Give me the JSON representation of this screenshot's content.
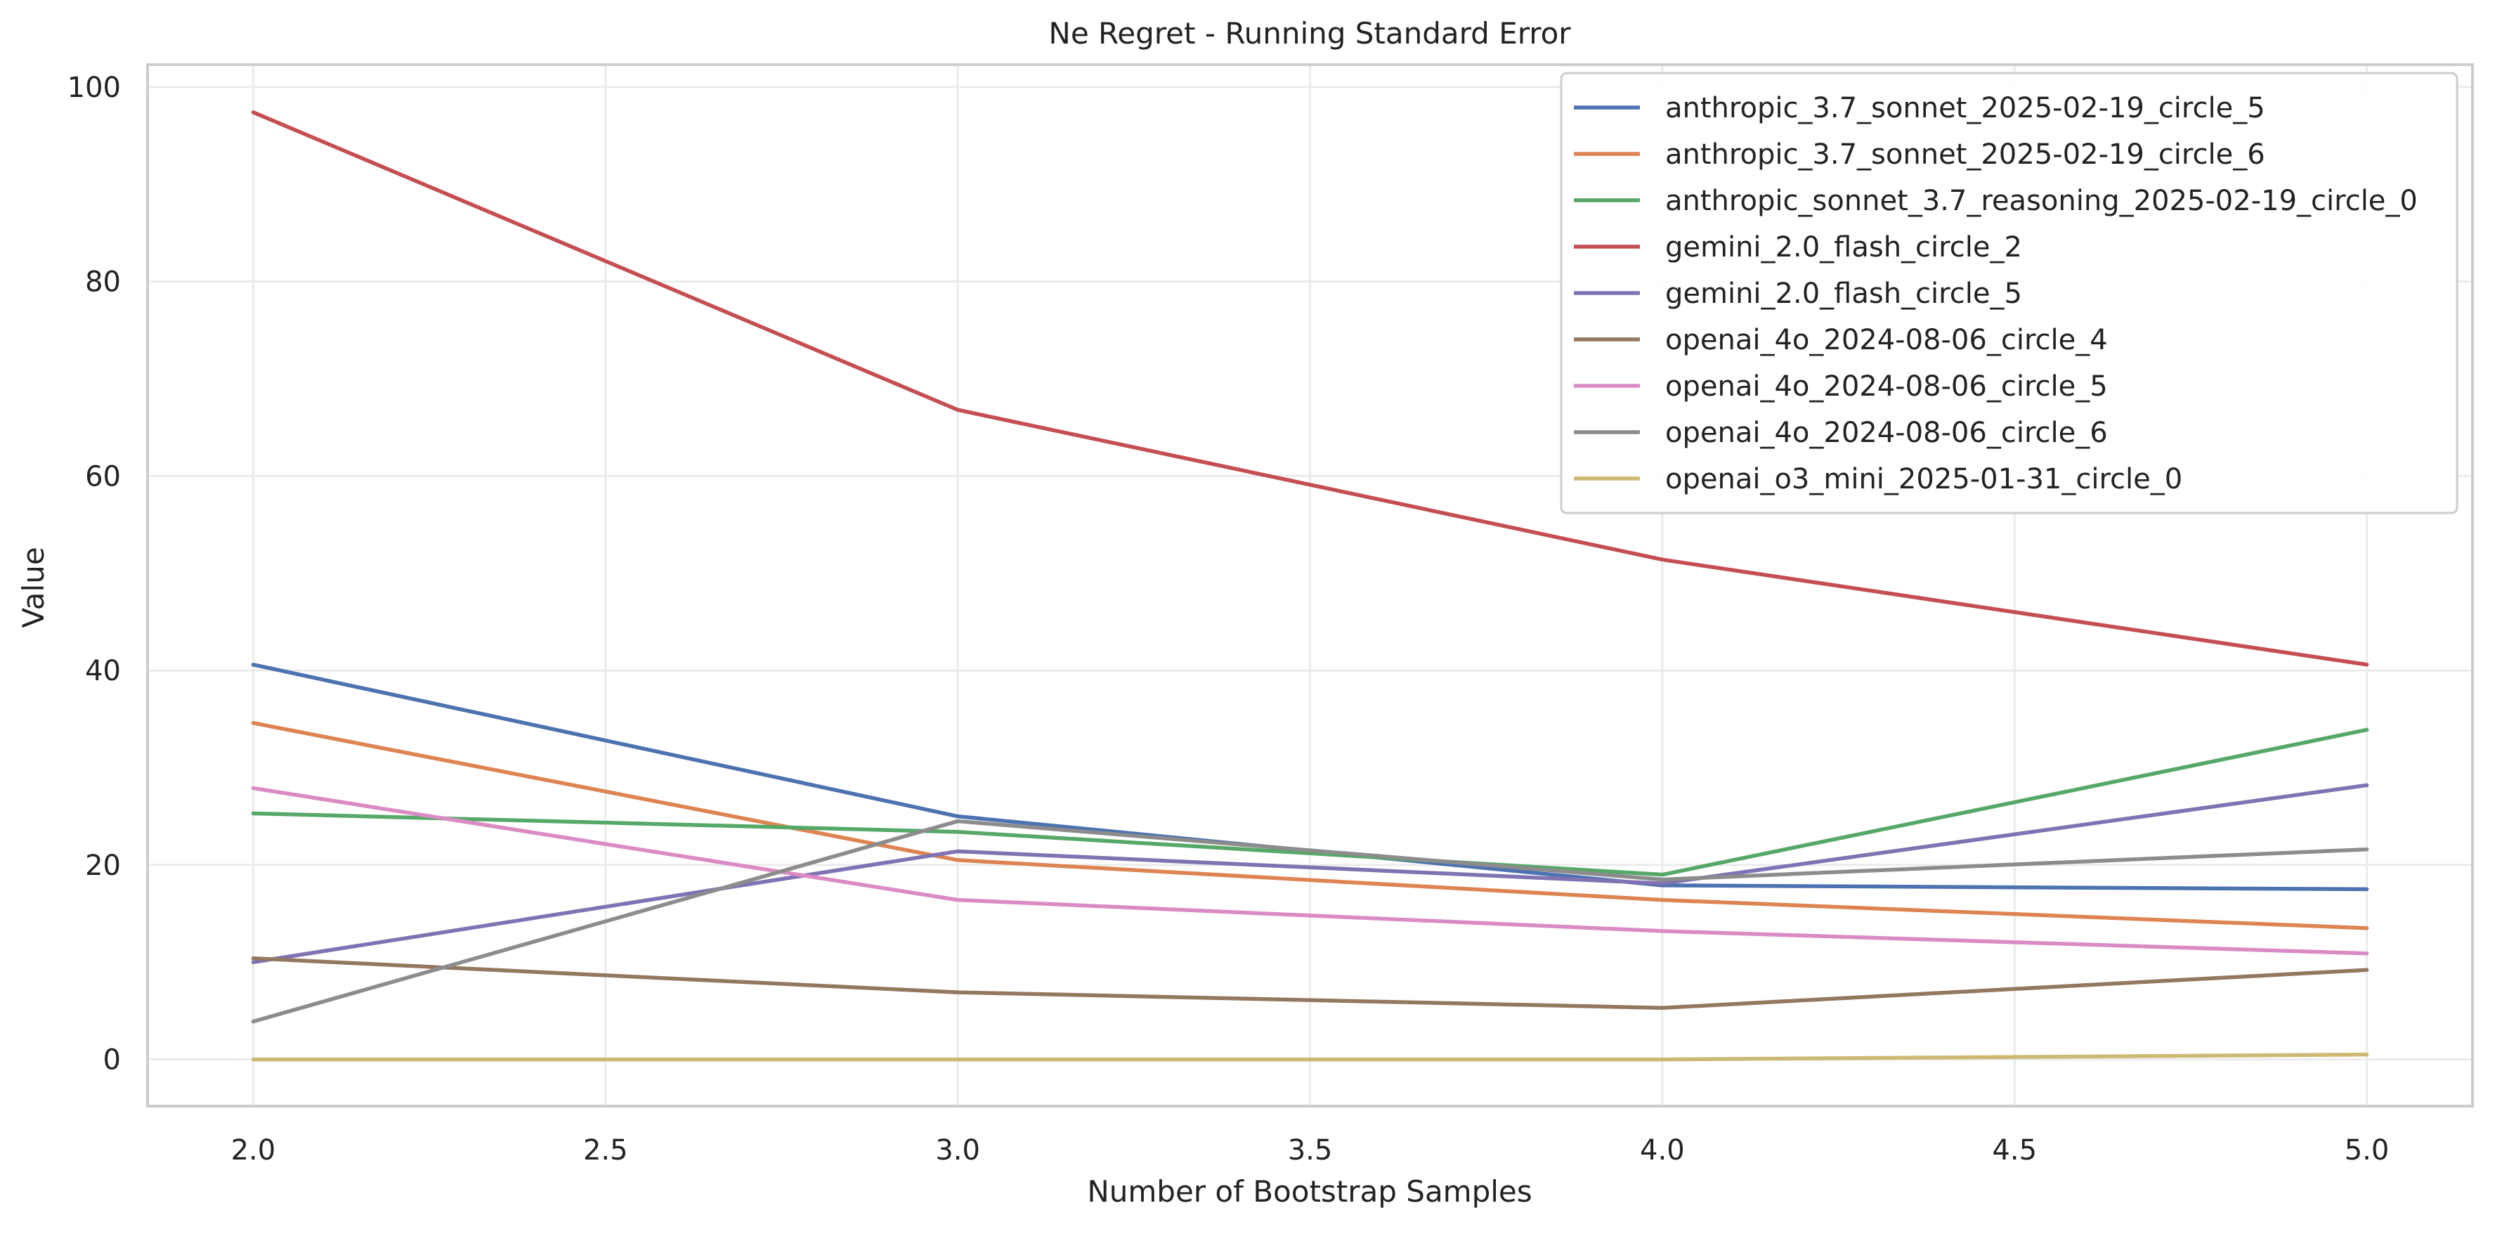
{
  "chart_data": {
    "type": "line",
    "title": "Ne Regret - Running Standard Error",
    "xlabel": "Number of Bootstrap Samples",
    "ylabel": "Value",
    "xlim": [
      1.85,
      5.15
    ],
    "ylim": [
      -4.8,
      102.3
    ],
    "xticks": [
      2.0,
      2.5,
      3.0,
      3.5,
      4.0,
      4.5,
      5.0
    ],
    "xtick_labels": [
      "2.0",
      "2.5",
      "3.0",
      "3.5",
      "4.0",
      "4.5",
      "5.0"
    ],
    "yticks": [
      0,
      20,
      40,
      60,
      80,
      100
    ],
    "ytick_labels": [
      "0",
      "20",
      "40",
      "60",
      "80",
      "100"
    ],
    "grid": true,
    "legend_position": "top-right",
    "x": [
      2.0,
      3.0,
      4.0,
      5.0
    ],
    "series": [
      {
        "name": "anthropic_3.7_sonnet_2025-02-19_circle_5",
        "color": "#4c72b0",
        "values": [
          40.6,
          25.0,
          17.9,
          17.5
        ]
      },
      {
        "name": "anthropic_3.7_sonnet_2025-02-19_circle_6",
        "color": "#dd8452",
        "values": [
          34.6,
          20.5,
          16.4,
          13.5
        ]
      },
      {
        "name": "anthropic_sonnet_3.7_reasoning_2025-02-19_circle_0",
        "color": "#55a868",
        "values": [
          25.3,
          23.4,
          19.0,
          33.9
        ]
      },
      {
        "name": "gemini_2.0_flash_circle_2",
        "color": "#c44e52",
        "values": [
          97.4,
          66.8,
          51.4,
          40.6
        ]
      },
      {
        "name": "gemini_2.0_flash_circle_5",
        "color": "#8172b3",
        "values": [
          10.0,
          21.4,
          18.1,
          28.2
        ]
      },
      {
        "name": "openai_4o_2024-08-06_circle_4",
        "color": "#937860",
        "values": [
          10.4,
          6.9,
          5.3,
          9.2
        ]
      },
      {
        "name": "openai_4o_2024-08-06_circle_5",
        "color": "#da8bc3",
        "values": [
          27.9,
          16.4,
          13.2,
          10.9
        ]
      },
      {
        "name": "openai_4o_2024-08-06_circle_6",
        "color": "#8c8c8c",
        "values": [
          3.9,
          24.5,
          18.5,
          21.6
        ]
      },
      {
        "name": "openai_o3_mini_2025-01-31_circle_0",
        "color": "#ccb974",
        "values": [
          0.0,
          0.0,
          0.0,
          0.5
        ]
      }
    ]
  }
}
